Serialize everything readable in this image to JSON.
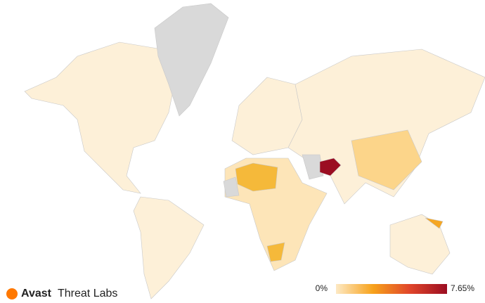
{
  "brand": {
    "name": "Avast",
    "product": "Threat Labs"
  },
  "legend": {
    "min": {
      "value": 0,
      "label": "0%"
    },
    "max": {
      "value": 7.65,
      "label": "7.65%"
    },
    "colors": [
      "#fde9c4",
      "#f7a21b",
      "#e0452a",
      "#9b0d22"
    ]
  }
}
